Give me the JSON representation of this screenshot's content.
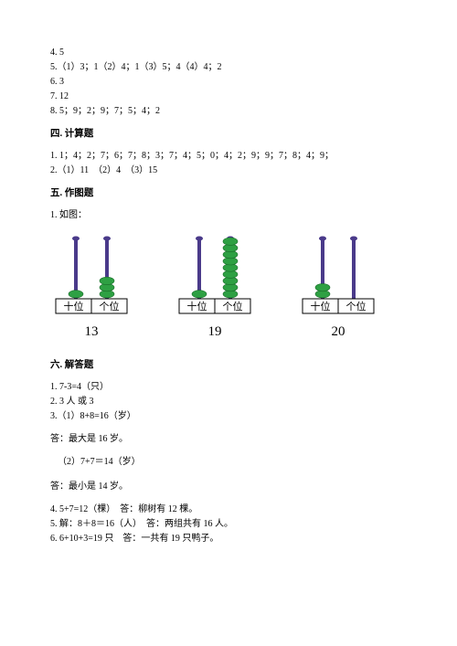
{
  "answers": {
    "a4": "4. 5",
    "a5": "5.（1）3；1（2）4；1（3）5；4（4）4；2",
    "a6": "6. 3",
    "a7": "7. 12",
    "a8": "8. 5；9；2；9；7；5；4；2"
  },
  "sec4": {
    "heading": "四. 计算题",
    "l1": "1. 1；4；2；7；6；7；8；3；7；4；5；0；4；2；9；9；7；8；4；9；",
    "l2": "2.（1）11　（2）4　（3）15"
  },
  "sec5": {
    "heading": "五. 作图题",
    "l1": "1. 如图："
  },
  "abacus": {
    "rod_color": "#4a3a8a",
    "bead_color": "#2ea043",
    "bead_stroke": "#1a6b2a",
    "base_fill": "#ffffff",
    "base_stroke": "#000000",
    "label_tens": "十位",
    "label_ones": "个位",
    "items": [
      {
        "tens": 1,
        "ones": 3,
        "number": "13"
      },
      {
        "tens": 1,
        "ones": 9,
        "number": "19"
      },
      {
        "tens": 2,
        "ones": 0,
        "number": "20"
      }
    ]
  },
  "sec6": {
    "heading": "六. 解答题",
    "l1": "1. 7-3=4（只）",
    "l2": "2. 3 人 或 3",
    "l3": "3.（1）8+8=16（岁）",
    "l4": "答：最大是 16 岁。",
    "l5": "（2）7+7＝14（岁）",
    "l6": "答：最小是 14 岁。",
    "l7": "4. 5+7=12（棵）　答：柳树有 12 棵。",
    "l8": "5. 解：8＋8＝16（人）　答：两组共有 16 人。",
    "l9": "6. 6+10+3=19 只　答：一共有 19 只鸭子。"
  }
}
